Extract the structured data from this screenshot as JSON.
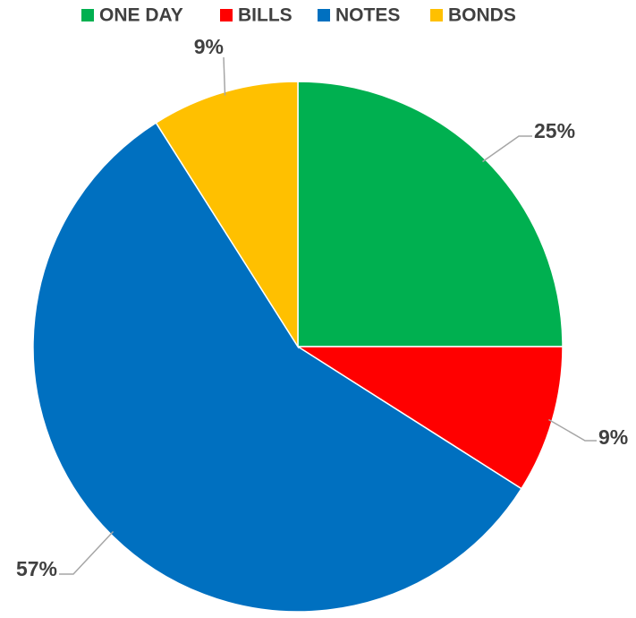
{
  "chart_data": {
    "type": "pie",
    "title": "",
    "legend_position": "top",
    "slices": [
      {
        "label": "ONE DAY",
        "value": 25,
        "value_label": "25%",
        "color": "#00b050"
      },
      {
        "label": "BILLS",
        "value": 9,
        "value_label": "9%",
        "color": "#ff0000"
      },
      {
        "label": "NOTES",
        "value": 57,
        "value_label": "57%",
        "color": "#0070c0"
      },
      {
        "label": "BONDS",
        "value": 9,
        "value_label": "9%",
        "color": "#ffc000"
      }
    ],
    "leader_line_color": "#a6a6a6",
    "label_text_color": "#404040"
  }
}
